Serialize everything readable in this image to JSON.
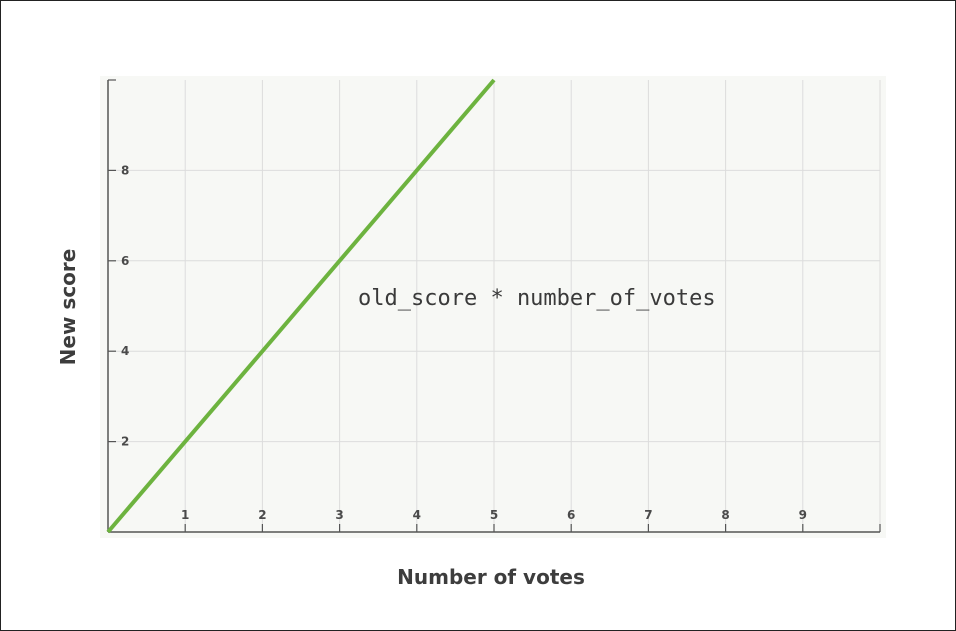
{
  "chart_data": {
    "type": "line",
    "title": "",
    "xlabel": "Number of votes",
    "ylabel": "New score",
    "xlim": [
      0,
      10
    ],
    "ylim": [
      0,
      10
    ],
    "x_ticks": [
      1,
      2,
      3,
      4,
      5,
      6,
      7,
      8,
      9
    ],
    "y_ticks": [
      2,
      4,
      6,
      8
    ],
    "grid": true,
    "legend": "none",
    "annotation": "old_score * number_of_votes",
    "series": [
      {
        "color": "#6db33f",
        "x": [
          0,
          5
        ],
        "y": [
          0,
          10
        ]
      }
    ],
    "colors": {
      "plot_background": "#f7f8f5",
      "grid": "#dcdcdc",
      "axis": "#555555",
      "line": "#6db33f"
    }
  }
}
